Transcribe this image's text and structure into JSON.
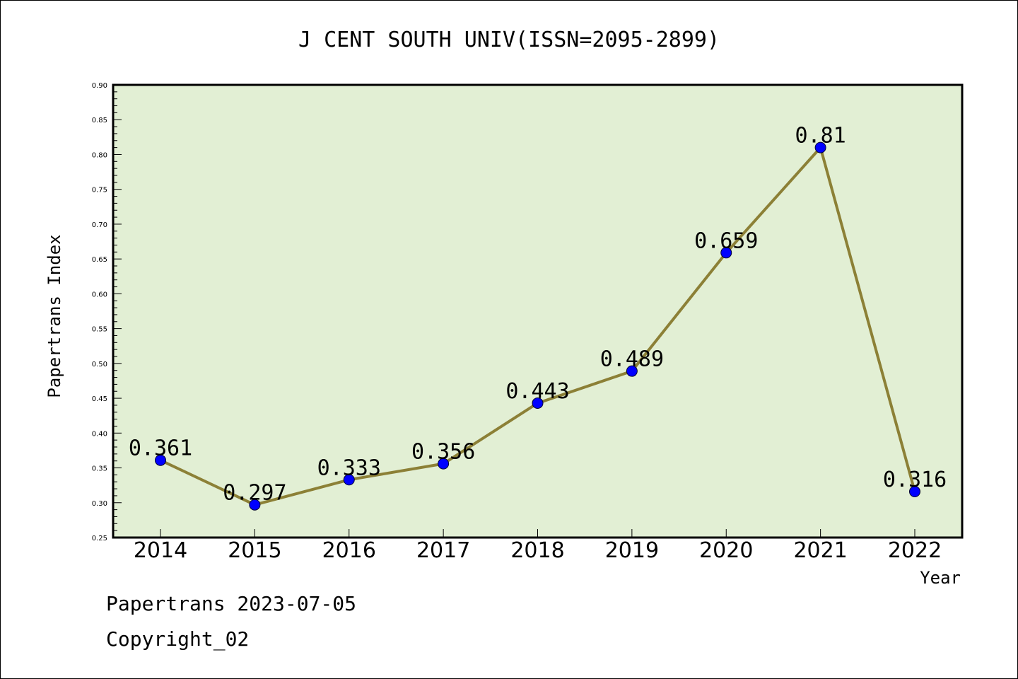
{
  "chart_data": {
    "type": "line",
    "title": "J CENT SOUTH UNIV(ISSN=2095-2899)",
    "xlabel": "Year",
    "ylabel": "Papertrans Index",
    "categories": [
      "2014",
      "2015",
      "2016",
      "2017",
      "2018",
      "2019",
      "2020",
      "2021",
      "2022"
    ],
    "series": [
      {
        "values": [
          0.361,
          0.297,
          0.333,
          0.356,
          0.443,
          0.489,
          0.659,
          0.81,
          0.316
        ],
        "labels": [
          "0.361",
          "0.297",
          "0.333",
          "0.356",
          "0.443",
          "0.489",
          "0.659",
          "0.81",
          "0.316"
        ]
      }
    ],
    "ylim": [
      0.25,
      0.9
    ],
    "yticks": [
      "0.25",
      "0.30",
      "0.35",
      "0.40",
      "0.45",
      "0.50",
      "0.55",
      "0.60",
      "0.65",
      "0.70",
      "0.75",
      "0.80",
      "0.85",
      "0.90"
    ],
    "grid": false,
    "legend": "none",
    "colors": {
      "plot_background": "#e2efd4",
      "line": "#8c8036",
      "marker": "#0000ff"
    }
  },
  "footer": {
    "line1": "Papertrans 2023-07-05",
    "line2": "Copyright_02"
  }
}
